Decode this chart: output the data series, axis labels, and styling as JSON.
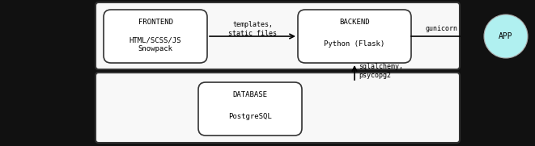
{
  "bg_color": "#111111",
  "content_bg": "#ffffff",
  "section_bg": "#f8f8f8",
  "section_edge": "#333333",
  "box_facecolor": "#ffffff",
  "box_edgecolor": "#333333",
  "app_circle_color": "#b0f0f0",
  "app_circle_edge": "#aaaaaa",
  "font_family": "monospace",
  "frontend_title": "FRONTEND",
  "frontend_sub": "HTML/SCSS/JS\nSnowpack",
  "backend_title": "BACKEND",
  "backend_sub": "Python (Flask)",
  "db_title": "DATABASE",
  "db_sub": "PostgreSQL",
  "arrow1_label": "templates,\nstatic files",
  "arrow2_label": "gunicorn",
  "arrow3_label": "sqlalchemy,\npsycopg2",
  "app_label": "APP",
  "fig_width": 6.61,
  "fig_height": 1.81,
  "dpi": 100
}
